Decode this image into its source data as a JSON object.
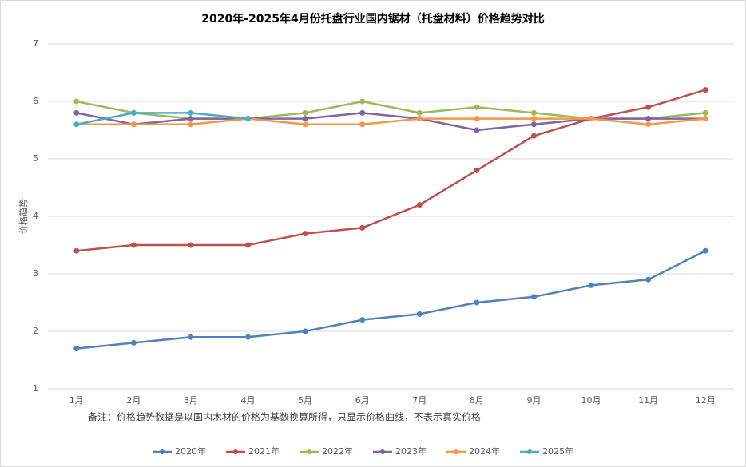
{
  "chart_data": {
    "type": "line",
    "title": "2020年-2025年4月份托盘行业国内锯材（托盘材料）价格趋势对比",
    "y_label": "价格趋势",
    "note": "备注：价格趋势数据是以国内木材的价格为基数换算所得，只显示价格曲线，不表示真实价格",
    "categories": [
      "1月",
      "2月",
      "3月",
      "4月",
      "5月",
      "6月",
      "7月",
      "8月",
      "9月",
      "10月",
      "11月",
      "12月"
    ],
    "series": [
      {
        "name": "2020年",
        "color": "#4f81bd",
        "values": [
          1.7,
          1.8,
          1.9,
          1.9,
          2.0,
          2.2,
          2.3,
          2.5,
          2.6,
          2.8,
          2.9,
          3.4
        ]
      },
      {
        "name": "2021年",
        "color": "#c0504d",
        "values": [
          3.4,
          3.5,
          3.5,
          3.5,
          3.7,
          3.8,
          4.2,
          4.8,
          5.4,
          5.7,
          5.9,
          6.2
        ]
      },
      {
        "name": "2022年",
        "color": "#9bbb59",
        "values": [
          6.0,
          5.8,
          5.7,
          5.7,
          5.8,
          6.0,
          5.8,
          5.9,
          5.8,
          5.7,
          5.7,
          5.8
        ]
      },
      {
        "name": "2023年",
        "color": "#8064a2",
        "values": [
          5.8,
          5.6,
          5.7,
          5.7,
          5.7,
          5.8,
          5.7,
          5.5,
          5.6,
          5.7,
          5.7,
          5.7
        ]
      },
      {
        "name": "2024年",
        "color": "#f79646",
        "values": [
          5.6,
          5.6,
          5.6,
          5.7,
          5.6,
          5.6,
          5.7,
          5.7,
          5.7,
          5.7,
          5.6,
          5.7
        ]
      },
      {
        "name": "2025年",
        "color": "#4bacc6",
        "values": [
          5.6,
          5.8,
          5.8,
          5.7,
          null,
          null,
          null,
          null,
          null,
          null,
          null,
          null
        ]
      }
    ],
    "ylim": [
      1,
      7
    ],
    "yticks": [
      1,
      2,
      3,
      4,
      5,
      6,
      7
    ],
    "grid": true,
    "legend": "bottom"
  }
}
